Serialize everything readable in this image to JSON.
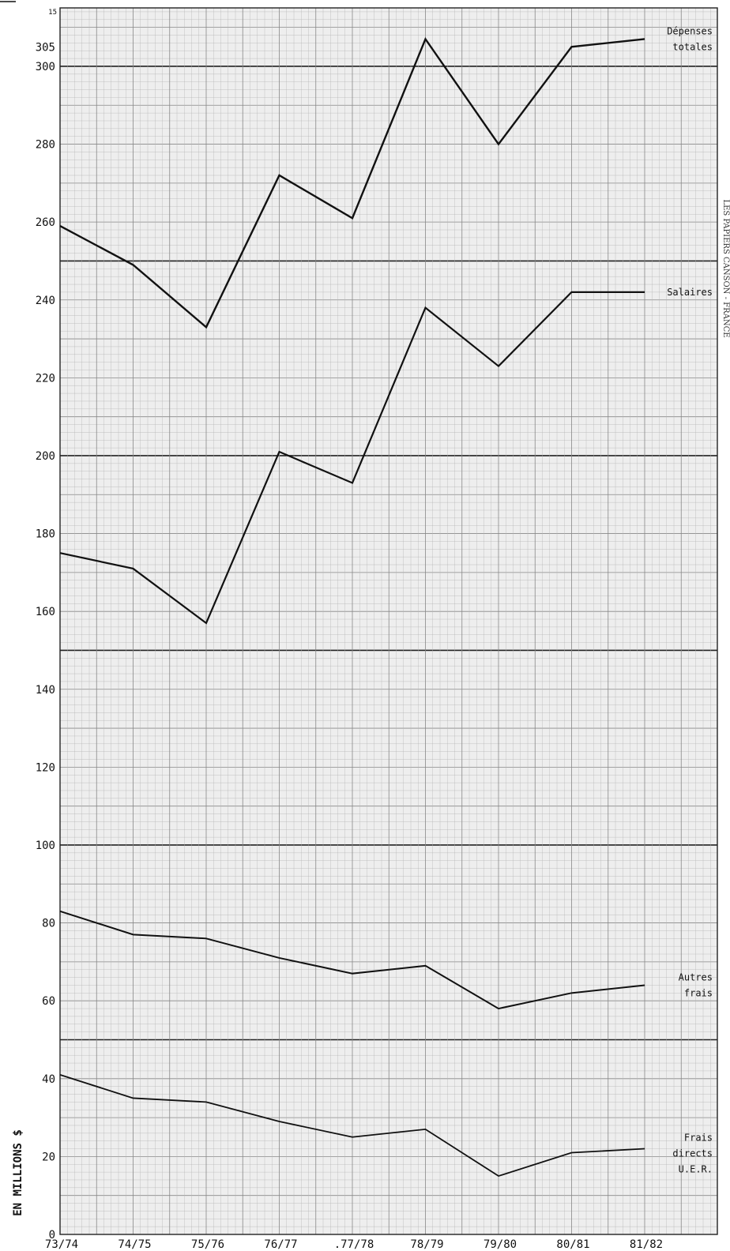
{
  "chart_data": {
    "type": "line",
    "title": "",
    "xlabel": "",
    "ylabel": "EN MILLIONS $",
    "x": [
      "73/74",
      "74/75",
      "75/76",
      "76/77",
      ".77/78",
      "78/79",
      "79/80",
      "80/81",
      "81/82"
    ],
    "y_ticks": [
      "0",
      "20",
      "40",
      "60",
      "80",
      "100",
      "120",
      "140",
      "160",
      "180",
      "200",
      "220",
      "240",
      "260",
      "280",
      "300",
      "305"
    ],
    "y_tick_values": [
      0,
      20,
      40,
      60,
      80,
      100,
      120,
      140,
      160,
      180,
      200,
      220,
      240,
      260,
      280,
      300,
      305
    ],
    "ylim": [
      0,
      315
    ],
    "top_tick": "15",
    "grid": true,
    "series": [
      {
        "name": "Dépenses totales",
        "label_lines": [
          "Dépenses",
          "totales"
        ],
        "values": [
          259,
          249,
          233,
          272,
          261,
          307,
          280,
          305,
          307
        ]
      },
      {
        "name": "Salaires",
        "label_lines": [
          "Salaires"
        ],
        "values": [
          175,
          171,
          157,
          201,
          193,
          238,
          223,
          242,
          242
        ]
      },
      {
        "name": "Autres frais",
        "label_lines": [
          "Autres",
          "frais"
        ],
        "values": [
          83,
          77,
          76,
          71,
          67,
          69,
          58,
          62,
          64
        ]
      },
      {
        "name": "Frais directs U.E.R.",
        "label_lines": [
          "Frais",
          "directs",
          "U.E.R."
        ],
        "values": [
          41,
          35,
          34,
          29,
          25,
          27,
          15,
          21,
          22
        ]
      }
    ],
    "side_note": "LES PAPIERS CANSON - FRANCE"
  }
}
